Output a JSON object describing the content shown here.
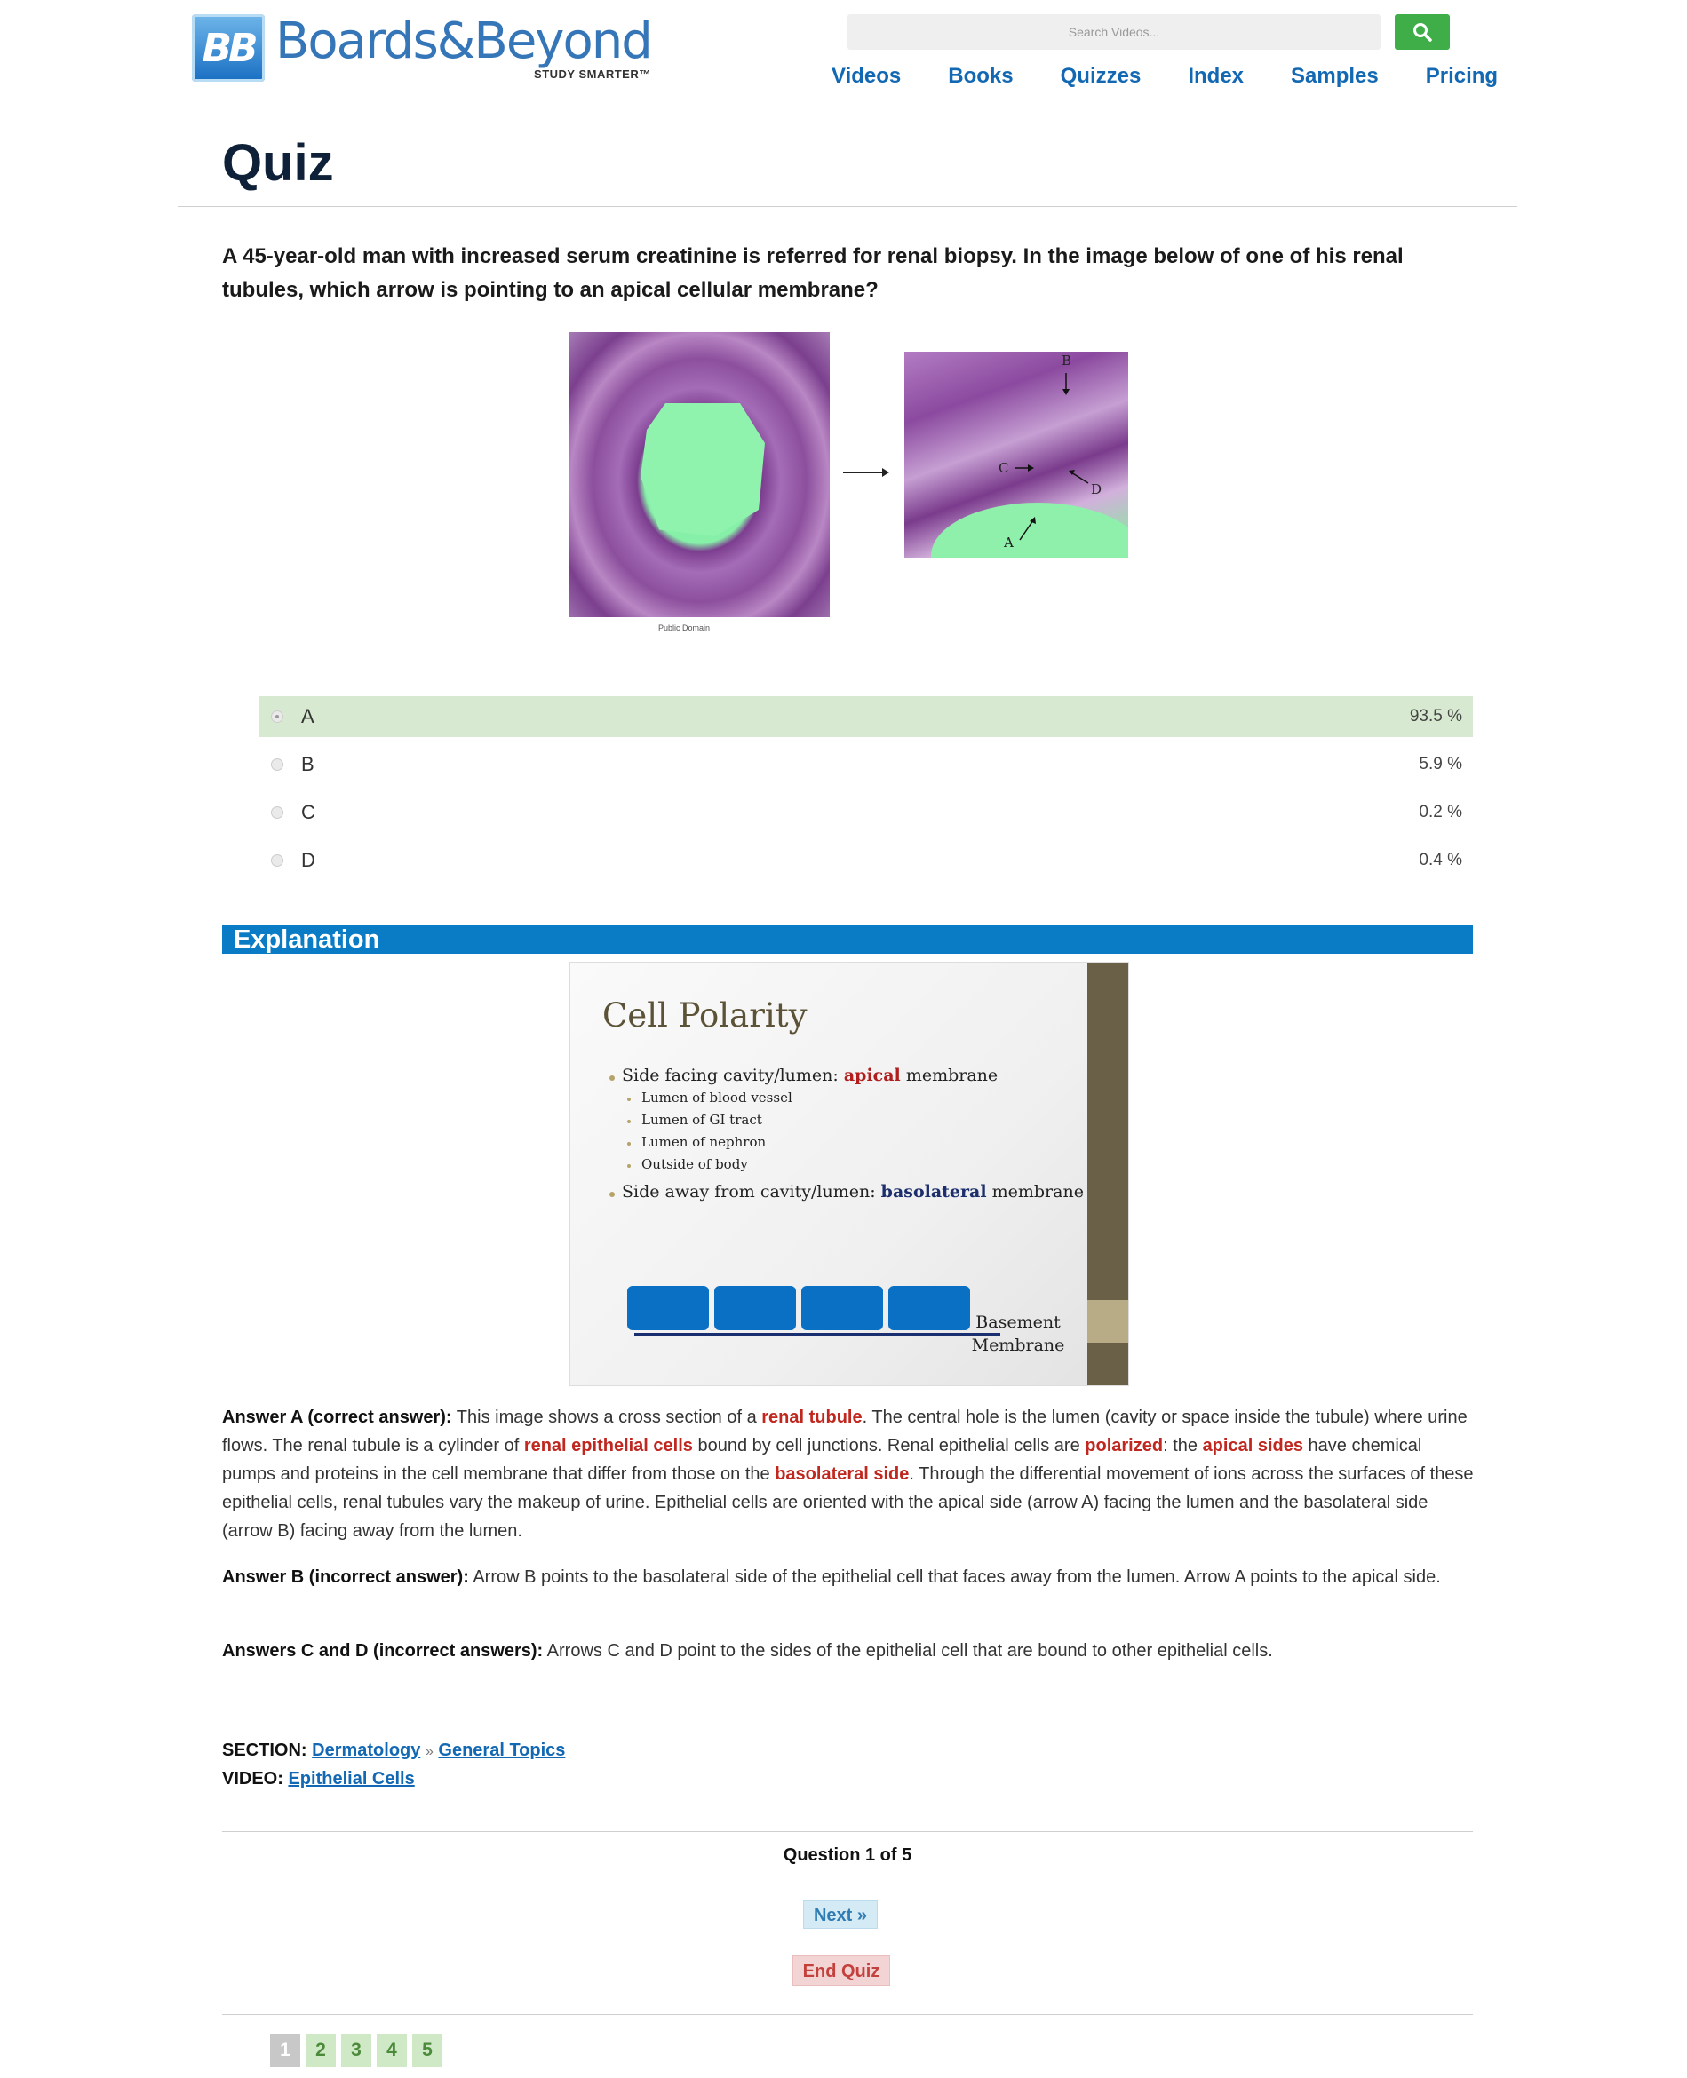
{
  "header": {
    "logo_mark": "BB",
    "logo_name": "Boards&Beyond",
    "logo_tagline": "STUDY SMARTER™",
    "search_placeholder": "Search Videos...",
    "nav": [
      "Videos",
      "Books",
      "Quizzes",
      "Index",
      "Samples",
      "Pricing"
    ],
    "accent": "#1268b3",
    "search_button_color": "#3fae49"
  },
  "page_title": "Quiz",
  "question": {
    "text": "A 45-year-old man with increased serum creatinine is referred for renal biopsy. In the image below of one of his renal tubules, which arrow is pointing to an apical cellular membrane?",
    "image_credit": "Public Domain",
    "image_labels": [
      "A",
      "B",
      "C",
      "D"
    ]
  },
  "answers": [
    {
      "label": "A",
      "percent": "93.5 %",
      "selected": true
    },
    {
      "label": "B",
      "percent": "5.9 %",
      "selected": false
    },
    {
      "label": "C",
      "percent": "0.2 %",
      "selected": false
    },
    {
      "label": "D",
      "percent": "0.4 %",
      "selected": false
    }
  ],
  "explanation": {
    "heading": "Explanation",
    "slide": {
      "title": "Cell Polarity",
      "bullet1_pre": "Side facing cavity/lumen: ",
      "bullet1_key": "apical",
      "bullet1_post": " membrane",
      "sub_bullets": [
        "Lumen of blood vessel",
        "Lumen of GI tract",
        "Lumen of nephron",
        "Outside of body"
      ],
      "bullet2_pre": "Side away from cavity/lumen: ",
      "bullet2_key": "basolateral",
      "bullet2_post": " membrane",
      "bm_label_1": "Basement",
      "bm_label_2": "Membrane"
    },
    "answer_a": {
      "lead": "Answer A (correct answer):",
      "t1": " This image shows a cross section of a ",
      "h1": "renal tubule",
      "t2": ". The central hole is the lumen (cavity or space inside the tubule) where urine flows. The renal tubule is a cylinder of ",
      "h2": "renal epithelial cells",
      "t3": " bound by cell junctions. Renal epithelial cells are ",
      "h3": "polarized",
      "t4": ": the ",
      "h4": "apical sides",
      "t5": " have chemical pumps and proteins in the cell membrane that differ from those on the ",
      "h5": "basolateral side",
      "t6": ". Through the differential movement of ions across the surfaces of these epithelial cells, renal tubules vary the makeup of urine. Epithelial cells are oriented with the apical side (arrow A) facing the lumen and the basolateral side (arrow B) facing away from the lumen."
    },
    "answer_b": {
      "lead": "Answer B (incorrect answer):",
      "text": " Arrow B points to the basolateral side of the epithelial cell that faces away from the lumen. Arrow A points to the apical side."
    },
    "answer_cd": {
      "lead": "Answers C and D (incorrect answers):",
      "text": " Arrows C and D point to the sides of the epithelial cell that are bound to other epithelial cells."
    },
    "highlight_color": "#c0271f"
  },
  "meta": {
    "section_label": "SECTION:",
    "section_link": "Dermatology",
    "separator": "»",
    "subsection_link": "General Topics",
    "video_label": "VIDEO:",
    "video_link": "Epithelial Cells"
  },
  "footer": {
    "question_count": "Question 1 of 5",
    "next_label": "Next »",
    "end_label": "End Quiz",
    "pages": [
      "1",
      "2",
      "3",
      "4",
      "5"
    ],
    "current_page": "1"
  }
}
